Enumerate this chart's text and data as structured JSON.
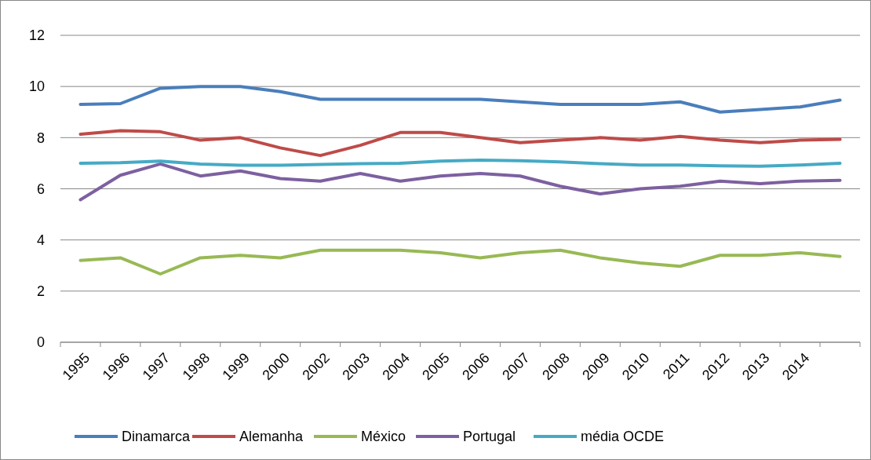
{
  "chart_data": {
    "type": "line",
    "categories": [
      "1995",
      "1996",
      "1997",
      "1998",
      "1999",
      "2000",
      "2002",
      "2003",
      "2004",
      "2005",
      "2006",
      "2007",
      "2008",
      "2009",
      "2010",
      "2011",
      "2012",
      "2013",
      "2014",
      null
    ],
    "series": [
      {
        "name": "Dinamarca",
        "color": "#4a7ebb",
        "values": [
          9.3,
          9.33,
          9.93,
          10.0,
          10.0,
          9.8,
          9.5,
          9.5,
          9.5,
          9.5,
          9.5,
          9.4,
          9.3,
          9.3,
          9.3,
          9.4,
          9.0,
          9.1,
          9.2,
          9.47
        ]
      },
      {
        "name": "Alemanha",
        "color": "#be4b48",
        "values": [
          8.13,
          8.27,
          8.23,
          7.9,
          8.0,
          7.6,
          7.3,
          7.7,
          8.2,
          8.2,
          8.0,
          7.8,
          7.9,
          8.0,
          7.9,
          8.05,
          7.9,
          7.8,
          7.9,
          7.93
        ]
      },
      {
        "name": "México",
        "color": "#98b954",
        "values": [
          3.2,
          3.3,
          2.67,
          3.3,
          3.4,
          3.3,
          3.6,
          3.6,
          3.6,
          3.5,
          3.3,
          3.5,
          3.6,
          3.3,
          3.1,
          2.97,
          3.4,
          3.4,
          3.5,
          3.35
        ]
      },
      {
        "name": "Portugal",
        "color": "#7d60a0",
        "values": [
          5.57,
          6.53,
          6.97,
          6.5,
          6.7,
          6.4,
          6.3,
          6.6,
          6.3,
          6.5,
          6.6,
          6.5,
          6.1,
          5.8,
          6.0,
          6.1,
          6.3,
          6.2,
          6.3,
          6.33
        ]
      },
      {
        "name": "média OCDE",
        "color": "#46aac5",
        "values": [
          7.0,
          7.02,
          7.08,
          6.97,
          6.92,
          6.92,
          6.95,
          6.98,
          7.0,
          7.08,
          7.12,
          7.1,
          7.05,
          6.98,
          6.93,
          6.93,
          6.9,
          6.88,
          6.93,
          7.0
        ]
      }
    ],
    "ylim": [
      0,
      12
    ],
    "yticks": [
      0,
      2,
      4,
      6,
      8,
      10,
      12
    ],
    "grid": "y",
    "legend": "bottom",
    "marker": "none",
    "line_style": "solid"
  }
}
